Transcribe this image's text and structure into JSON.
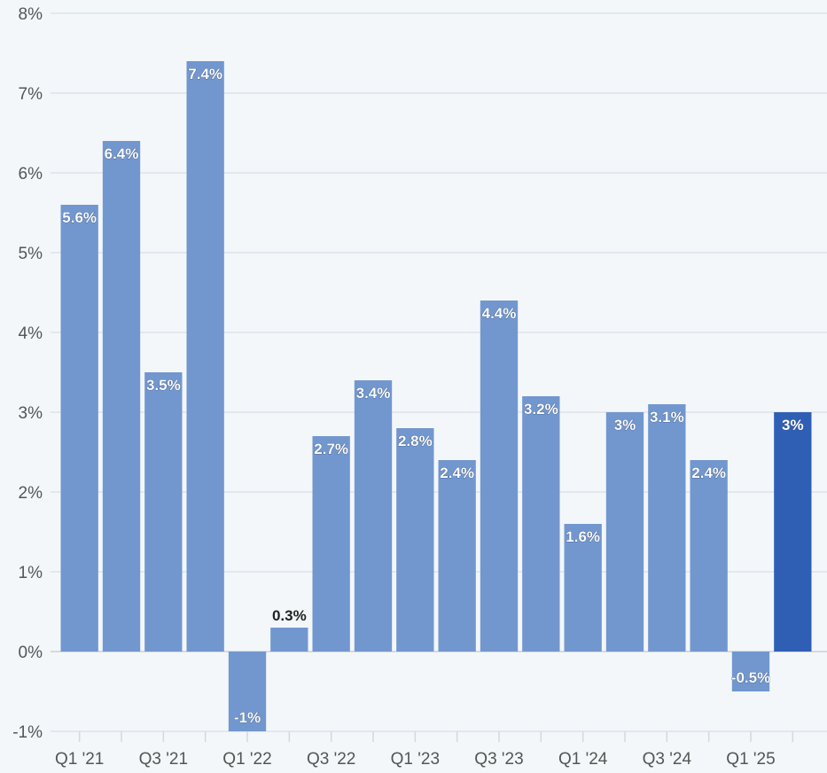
{
  "chart_data": {
    "type": "bar",
    "title": "",
    "xlabel": "",
    "ylabel": "",
    "ylim": [
      -1,
      8
    ],
    "yticks": [
      "-1%",
      "0%",
      "1%",
      "2%",
      "3%",
      "4%",
      "5%",
      "6%",
      "7%",
      "8%"
    ],
    "grid": true,
    "categories": [
      "Q1 '21",
      "Q2 '21",
      "Q3 '21",
      "Q4 '21",
      "Q1 '22",
      "Q2 '22",
      "Q3 '22",
      "Q4 '22",
      "Q1 '23",
      "Q2 '23",
      "Q3 '23",
      "Q4 '23",
      "Q1 '24",
      "Q2 '24",
      "Q3 '24",
      "Q4 '24",
      "Q1 '25",
      "Q2 '25"
    ],
    "x_tick_labels_shown": [
      "Q1 '21",
      "Q3 '21",
      "Q1 '22",
      "Q3 '22",
      "Q1 '23",
      "Q3 '23",
      "Q1 '24",
      "Q3 '24",
      "Q1 '25"
    ],
    "values": [
      5.6,
      6.4,
      3.5,
      7.4,
      -1,
      0.3,
      2.7,
      3.4,
      2.8,
      2.4,
      4.4,
      3.2,
      1.6,
      3,
      3.1,
      2.4,
      -0.5,
      3
    ],
    "data_labels": [
      "5.6%",
      "6.4%",
      "3.5%",
      "7.4%",
      "-1%",
      "0.3%",
      "2.7%",
      "3.4%",
      "2.8%",
      "2.4%",
      "4.4%",
      "3.2%",
      "1.6%",
      "3%",
      "3.1%",
      "2.4%",
      "-0.5%",
      "3%"
    ],
    "colors": {
      "bar": "#7297cf",
      "highlight": "#2f5fb5",
      "grid": "#dde3ea"
    },
    "highlight_index": 17
  }
}
